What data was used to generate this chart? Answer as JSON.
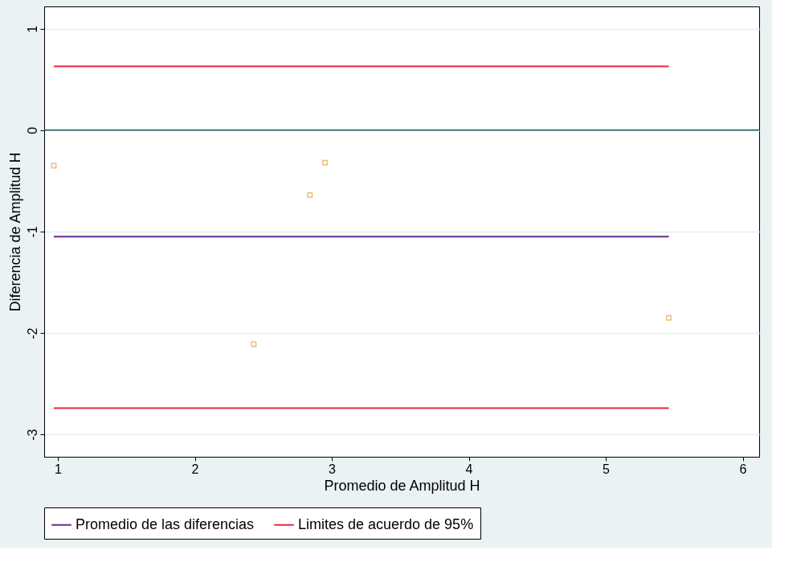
{
  "chart_data": {
    "type": "scatter",
    "xlabel": "Promedio de Amplitud H",
    "ylabel": "Diferencia de Amplitud H",
    "xlim": [
      0.9,
      6.12
    ],
    "ylim": [
      -3.22,
      1.22
    ],
    "xticks": [
      1,
      2,
      3,
      4,
      5,
      6
    ],
    "yticks": [
      1,
      0,
      -1,
      -2,
      -3
    ],
    "grid": "y",
    "legend": "bottom",
    "series": [
      {
        "marker": "square",
        "color": "#e8a040",
        "x": [
          0.97,
          2.95,
          2.84,
          2.43,
          5.46
        ],
        "values": [
          -0.35,
          -0.32,
          -0.64,
          -2.11,
          -1.85
        ]
      },
      {
        "name": "Promedio de las diferencias",
        "type": "line",
        "color": "#6a2c91",
        "x": [
          0.97,
          5.46
        ],
        "values": [
          -1.05,
          -1.05
        ]
      },
      {
        "name": "Limites de acuerdo de 95%",
        "type": "line",
        "color": "#e8283c",
        "x": [
          0.97,
          5.46
        ],
        "values": [
          0.63,
          0.63
        ]
      },
      {
        "type": "line",
        "color": "#e8283c",
        "x": [
          0.97,
          5.46
        ],
        "values": [
          -2.74,
          -2.74
        ]
      }
    ],
    "ref_lines": [
      {
        "axis": "y",
        "value": 0,
        "color": "#1a5a5a"
      }
    ]
  }
}
